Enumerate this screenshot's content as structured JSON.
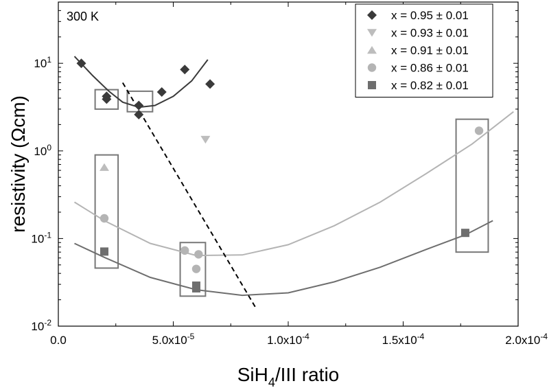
{
  "chart_data": {
    "type": "scatter",
    "annotation": "300 K",
    "xlabel": {
      "main": "SiH",
      "sub": "4",
      "rest": "/III ratio"
    },
    "ylabel": "resistivity (Ωcm)",
    "xlim": [
      0,
      0.0002
    ],
    "ylim": [
      0.01,
      50
    ],
    "yscale": "log",
    "x_ticks": [
      {
        "value": 0,
        "label": "0.0"
      },
      {
        "value": 5e-05,
        "label": "5.0x10",
        "exp": "-5"
      },
      {
        "value": 0.0001,
        "label": "1.0x10",
        "exp": "-4"
      },
      {
        "value": 0.00015,
        "label": "1.5x10",
        "exp": "-4"
      },
      {
        "value": 0.0002,
        "label": "2.0x10",
        "exp": "-4"
      }
    ],
    "y_ticks": [
      {
        "value": 0.01,
        "base": "10",
        "exp": "-2"
      },
      {
        "value": 0.1,
        "base": "10",
        "exp": "-1"
      },
      {
        "value": 1,
        "base": "10",
        "exp": "0"
      },
      {
        "value": 10,
        "base": "10",
        "exp": "1"
      }
    ],
    "legend_position": "top-right",
    "series": [
      {
        "name": "x = 0.95 ± 0.01",
        "marker": "diamond",
        "color": "#3a3a3a",
        "points": [
          [
            1e-05,
            10.0
          ],
          [
            2.1e-05,
            4.2
          ],
          [
            2.1e-05,
            3.9
          ],
          [
            3.5e-05,
            3.3
          ],
          [
            3.5e-05,
            2.6
          ],
          [
            4.5e-05,
            4.7
          ],
          [
            5.5e-05,
            8.5
          ],
          [
            6.6e-05,
            5.8
          ]
        ]
      },
      {
        "name": "x = 0.93 ± 0.01",
        "marker": "triangle-down",
        "color": "#bdbdbd",
        "points": [
          [
            6.4e-05,
            1.35
          ]
        ]
      },
      {
        "name": "x = 0.91 ± 0.01",
        "marker": "triangle-up",
        "color": "#bdbdbd",
        "points": [
          [
            2e-05,
            0.65
          ]
        ]
      },
      {
        "name": "x = 0.86 ± 0.01",
        "marker": "circle",
        "color": "#b4b4b4",
        "points": [
          [
            2e-05,
            0.17
          ],
          [
            5.5e-05,
            0.073
          ],
          [
            6.1e-05,
            0.066
          ],
          [
            6e-05,
            0.045
          ],
          [
            0.000183,
            1.7
          ]
        ]
      },
      {
        "name": "x = 0.82 ± 0.01",
        "marker": "square",
        "color": "#6e6e6e",
        "points": [
          [
            2e-05,
            0.071
          ],
          [
            6e-05,
            0.029
          ],
          [
            6e-05,
            0.027
          ],
          [
            0.000177,
            0.116
          ]
        ]
      }
    ],
    "curves": [
      {
        "color": "#3a3a3a",
        "style": "solid",
        "points": [
          [
            7e-06,
            12.0
          ],
          [
            1.5e-05,
            7.2
          ],
          [
            2.2e-05,
            4.8
          ],
          [
            2.8e-05,
            3.6
          ],
          [
            3.5e-05,
            3.15
          ],
          [
            4.2e-05,
            3.3
          ],
          [
            5e-05,
            4.2
          ],
          [
            5.8e-05,
            6.3
          ],
          [
            6.5e-05,
            11.0
          ]
        ]
      },
      {
        "color": "#b4b4b4",
        "style": "solid",
        "points": [
          [
            7e-06,
            0.26
          ],
          [
            2e-05,
            0.16
          ],
          [
            4e-05,
            0.088
          ],
          [
            6e-05,
            0.064
          ],
          [
            8e-05,
            0.065
          ],
          [
            0.0001,
            0.085
          ],
          [
            0.00012,
            0.14
          ],
          [
            0.00014,
            0.26
          ],
          [
            0.00016,
            0.55
          ],
          [
            0.00018,
            1.2
          ],
          [
            0.000198,
            2.8
          ]
        ]
      },
      {
        "color": "#6e6e6e",
        "style": "solid",
        "points": [
          [
            7e-06,
            0.088
          ],
          [
            2e-05,
            0.061
          ],
          [
            4e-05,
            0.036
          ],
          [
            6e-05,
            0.026
          ],
          [
            8e-05,
            0.0225
          ],
          [
            0.0001,
            0.024
          ],
          [
            0.00012,
            0.032
          ],
          [
            0.00014,
            0.047
          ],
          [
            0.00016,
            0.075
          ],
          [
            0.000177,
            0.11
          ],
          [
            0.000189,
            0.16
          ]
        ]
      },
      {
        "color": "#000000",
        "style": "dashed",
        "points": [
          [
            2.8e-05,
            6.0
          ],
          [
            8.6e-05,
            0.016
          ]
        ]
      }
    ],
    "highlight_boxes": [
      {
        "x": [
          1.6e-05,
          2.6e-05
        ],
        "y": [
          3.0,
          5.0
        ]
      },
      {
        "x": [
          3e-05,
          4.1e-05
        ],
        "y": [
          2.8,
          4.8
        ]
      },
      {
        "x": [
          1.6e-05,
          2.6e-05
        ],
        "y": [
          0.046,
          0.9
        ]
      },
      {
        "x": [
          5.3e-05,
          6.4e-05
        ],
        "y": [
          0.022,
          0.09
        ]
      },
      {
        "x": [
          0.000173,
          0.000187
        ],
        "y": [
          0.07,
          2.3
        ]
      }
    ]
  }
}
